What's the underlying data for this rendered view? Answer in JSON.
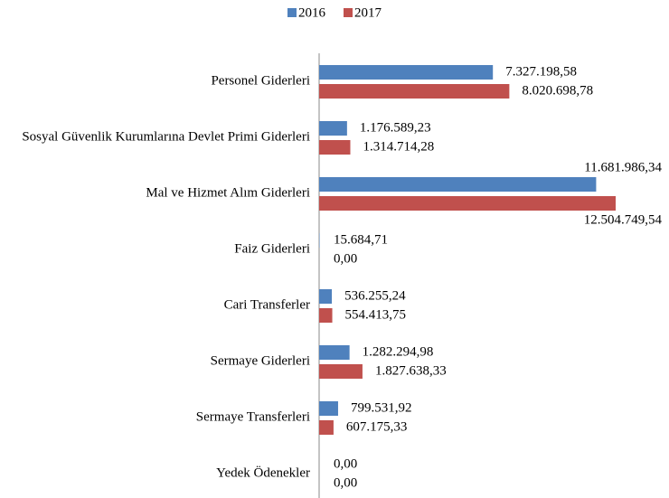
{
  "chart_data": {
    "type": "bar",
    "orientation": "horizontal",
    "categories": [
      "Personel Giderleri",
      "Sosyal Güvenlik Kurumlarına Devlet Primi Giderleri",
      "Mal ve Hizmet Alım Giderleri",
      "Faiz Giderleri",
      "Cari Transferler",
      "Sermaye Giderleri",
      "Sermaye Transferleri",
      "Yedek Ödenekler"
    ],
    "series": [
      {
        "name": "2016",
        "color": "#4f81bd",
        "values": [
          7327198.58,
          1176589.23,
          11681986.34,
          15684.71,
          536255.24,
          1282294.98,
          799531.92,
          0
        ],
        "value_labels": [
          "7.327.198,58",
          "1.176.589,23",
          "11.681.986,34",
          "15.684,71",
          "536.255,24",
          "1.282.294,98",
          "799.531,92",
          "0,00"
        ]
      },
      {
        "name": "2017",
        "color": "#c0504d",
        "values": [
          8020698.78,
          1314714.28,
          12504749.54,
          0,
          554413.75,
          1827638.33,
          607175.33,
          0
        ],
        "value_labels": [
          "8.020.698,78",
          "1.314.714,28",
          "12.504.749,54",
          "0,00",
          "554.413,75",
          "1.827.638,33",
          "607.175,33",
          "0,00"
        ]
      }
    ],
    "legend": "top"
  }
}
